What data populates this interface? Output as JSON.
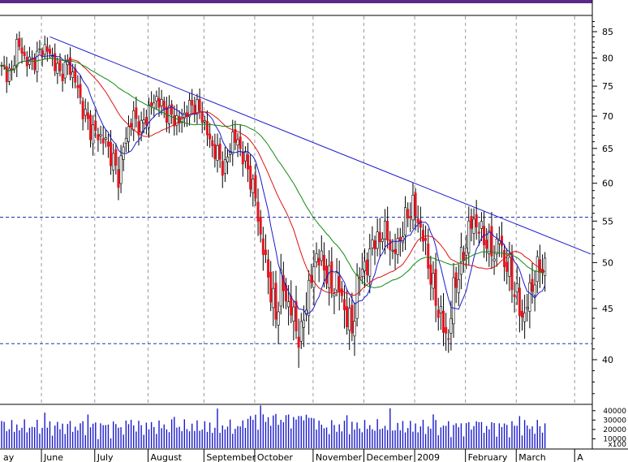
{
  "chart_data": {
    "type": "candlestick",
    "title": "",
    "ylabel": "",
    "xlabel": "",
    "ylim": [
      36,
      88
    ],
    "y_ticks": [
      40,
      45,
      50,
      55,
      60,
      65,
      70,
      75,
      80,
      85
    ],
    "months": [
      {
        "label": "ay",
        "idx": 0
      },
      {
        "label": "June",
        "idx": 16
      },
      {
        "label": "July",
        "idx": 37
      },
      {
        "label": "August",
        "idx": 58
      },
      {
        "label": "September",
        "idx": 80
      },
      {
        "label": "October",
        "idx": 100
      },
      {
        "label": "November",
        "idx": 123
      },
      {
        "label": "December",
        "idx": 143
      },
      {
        "label": "2009",
        "idx": 163
      },
      {
        "label": "February",
        "idx": 183
      },
      {
        "label": "March",
        "idx": 203
      },
      {
        "label": "A",
        "idx": 226
      }
    ],
    "horizontal_levels": [
      55.5,
      41.5
    ],
    "trendline": [
      {
        "idx": 19,
        "price": 84
      },
      {
        "idx": 232,
        "price": 51
      }
    ],
    "close_anchors": [
      [
        0,
        78
      ],
      [
        4,
        77
      ],
      [
        6,
        83
      ],
      [
        9,
        80
      ],
      [
        12,
        79
      ],
      [
        15,
        81
      ],
      [
        17,
        82
      ],
      [
        20,
        80
      ],
      [
        23,
        77
      ],
      [
        26,
        79
      ],
      [
        29,
        76
      ],
      [
        32,
        71
      ],
      [
        35,
        68
      ],
      [
        38,
        67
      ],
      [
        41,
        66
      ],
      [
        44,
        63
      ],
      [
        46,
        61
      ],
      [
        49,
        67
      ],
      [
        52,
        70
      ],
      [
        55,
        68
      ],
      [
        58,
        71
      ],
      [
        61,
        73
      ],
      [
        64,
        71
      ],
      [
        67,
        70
      ],
      [
        70,
        69
      ],
      [
        73,
        71
      ],
      [
        76,
        72
      ],
      [
        79,
        70
      ],
      [
        82,
        66
      ],
      [
        85,
        64
      ],
      [
        88,
        62
      ],
      [
        91,
        67
      ],
      [
        94,
        65
      ],
      [
        97,
        62
      ],
      [
        100,
        58
      ],
      [
        102,
        53
      ],
      [
        104,
        50
      ],
      [
        106,
        47
      ],
      [
        108,
        44
      ],
      [
        110,
        48
      ],
      [
        112,
        46
      ],
      [
        114,
        45
      ],
      [
        116,
        43
      ],
      [
        118,
        42
      ],
      [
        120,
        46
      ],
      [
        122,
        48
      ],
      [
        124,
        51
      ],
      [
        126,
        50
      ],
      [
        128,
        49
      ],
      [
        130,
        47
      ],
      [
        132,
        48
      ],
      [
        134,
        46
      ],
      [
        136,
        44
      ],
      [
        138,
        43
      ],
      [
        140,
        47
      ],
      [
        142,
        50
      ],
      [
        144,
        49
      ],
      [
        146,
        53
      ],
      [
        148,
        52
      ],
      [
        150,
        54
      ],
      [
        152,
        53
      ],
      [
        154,
        51
      ],
      [
        156,
        52
      ],
      [
        158,
        54
      ],
      [
        160,
        56
      ],
      [
        162,
        57
      ],
      [
        164,
        55
      ],
      [
        166,
        53
      ],
      [
        168,
        50
      ],
      [
        170,
        47
      ],
      [
        172,
        45
      ],
      [
        174,
        43
      ],
      [
        176,
        42
      ],
      [
        178,
        47
      ],
      [
        180,
        49
      ],
      [
        182,
        51
      ],
      [
        184,
        54
      ],
      [
        186,
        55
      ],
      [
        188,
        54
      ],
      [
        190,
        53
      ],
      [
        192,
        52
      ],
      [
        194,
        51
      ],
      [
        196,
        53
      ],
      [
        198,
        50
      ],
      [
        200,
        49
      ],
      [
        202,
        47
      ],
      [
        204,
        45
      ],
      [
        206,
        44
      ],
      [
        208,
        47
      ],
      [
        210,
        48
      ],
      [
        212,
        50
      ],
      [
        214,
        49
      ]
    ],
    "volume_axis": {
      "ticks": [
        10000,
        20000,
        30000,
        40000
      ],
      "unit": "x100"
    }
  }
}
